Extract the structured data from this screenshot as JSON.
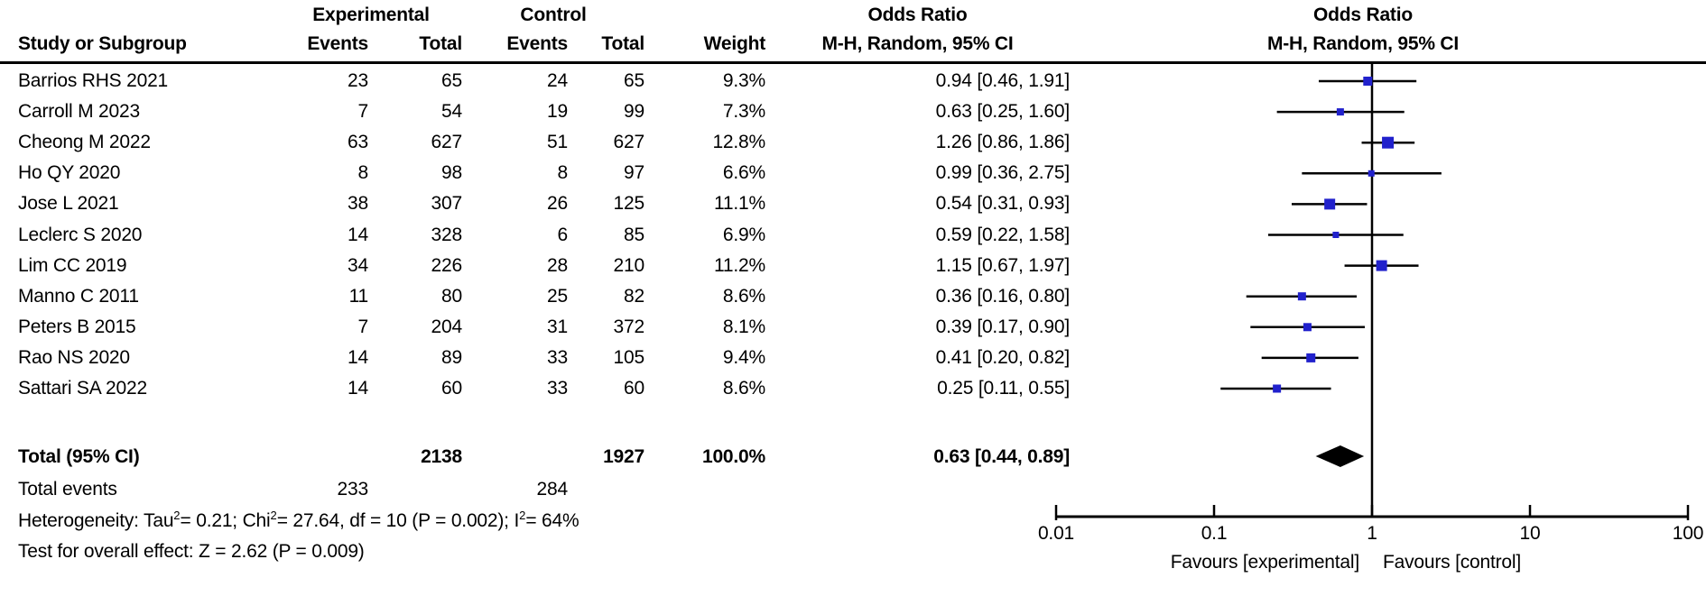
{
  "columns": {
    "experimental": "Experimental",
    "control": "Control",
    "odds_ratio": "Odds Ratio",
    "study_or_subgroup": "Study or Subgroup",
    "events": "Events",
    "total": "Total",
    "weight": "Weight",
    "mh_ci": "M-H, Random, 95% CI"
  },
  "chart_data": {
    "type": "forest",
    "scale": "log10",
    "effect_measure": "Odds Ratio (M-H, Random, 95% CI)",
    "x_axis": {
      "min": 0.01,
      "max": 100,
      "ref_line": 1,
      "ticks": [
        0.01,
        0.1,
        1,
        10,
        100
      ],
      "tick_labels": [
        "0.01",
        "0.1",
        "1",
        "10",
        "100"
      ]
    },
    "marker_color": "#2121cc",
    "favours_left": "Favours [experimental]",
    "favours_right": "Favours [control]",
    "studies": [
      {
        "name": "Barrios RHS 2021",
        "exp_events": "23",
        "exp_total": "65",
        "ctl_events": "24",
        "ctl_total": "65",
        "weight": "9.3%",
        "weight_pct": 9.3,
        "or": 0.94,
        "lo": 0.46,
        "hi": 1.91,
        "or_ci": "0.94 [0.46, 1.91]"
      },
      {
        "name": "Carroll M 2023",
        "exp_events": "7",
        "exp_total": "54",
        "ctl_events": "19",
        "ctl_total": "99",
        "weight": "7.3%",
        "weight_pct": 7.3,
        "or": 0.63,
        "lo": 0.25,
        "hi": 1.6,
        "or_ci": "0.63 [0.25, 1.60]"
      },
      {
        "name": "Cheong M 2022",
        "exp_events": "63",
        "exp_total": "627",
        "ctl_events": "51",
        "ctl_total": "627",
        "weight": "12.8%",
        "weight_pct": 12.8,
        "or": 1.26,
        "lo": 0.86,
        "hi": 1.86,
        "or_ci": "1.26 [0.86, 1.86]"
      },
      {
        "name": "Ho QY 2020",
        "exp_events": "8",
        "exp_total": "98",
        "ctl_events": "8",
        "ctl_total": "97",
        "weight": "6.6%",
        "weight_pct": 6.6,
        "or": 0.99,
        "lo": 0.36,
        "hi": 2.75,
        "or_ci": "0.99 [0.36, 2.75]"
      },
      {
        "name": "Jose L 2021",
        "exp_events": "38",
        "exp_total": "307",
        "ctl_events": "26",
        "ctl_total": "125",
        "weight": "11.1%",
        "weight_pct": 11.1,
        "or": 0.54,
        "lo": 0.31,
        "hi": 0.93,
        "or_ci": "0.54 [0.31, 0.93]"
      },
      {
        "name": "Leclerc S 2020",
        "exp_events": "14",
        "exp_total": "328",
        "ctl_events": "6",
        "ctl_total": "85",
        "weight": "6.9%",
        "weight_pct": 6.9,
        "or": 0.59,
        "lo": 0.22,
        "hi": 1.58,
        "or_ci": "0.59 [0.22, 1.58]"
      },
      {
        "name": "Lim CC 2019",
        "exp_events": "34",
        "exp_total": "226",
        "ctl_events": "28",
        "ctl_total": "210",
        "weight": "11.2%",
        "weight_pct": 11.2,
        "or": 1.15,
        "lo": 0.67,
        "hi": 1.97,
        "or_ci": "1.15 [0.67, 1.97]"
      },
      {
        "name": "Manno C 2011",
        "exp_events": "11",
        "exp_total": "80",
        "ctl_events": "25",
        "ctl_total": "82",
        "weight": "8.6%",
        "weight_pct": 8.6,
        "or": 0.36,
        "lo": 0.16,
        "hi": 0.8,
        "or_ci": "0.36 [0.16, 0.80]"
      },
      {
        "name": "Peters B 2015",
        "exp_events": "7",
        "exp_total": "204",
        "ctl_events": "31",
        "ctl_total": "372",
        "weight": "8.1%",
        "weight_pct": 8.1,
        "or": 0.39,
        "lo": 0.17,
        "hi": 0.9,
        "or_ci": "0.39 [0.17, 0.90]"
      },
      {
        "name": "Rao NS 2020",
        "exp_events": "14",
        "exp_total": "89",
        "ctl_events": "33",
        "ctl_total": "105",
        "weight": "9.4%",
        "weight_pct": 9.4,
        "or": 0.41,
        "lo": 0.2,
        "hi": 0.82,
        "or_ci": "0.41 [0.20, 0.82]"
      },
      {
        "name": "Sattari SA 2022",
        "exp_events": "14",
        "exp_total": "60",
        "ctl_events": "33",
        "ctl_total": "60",
        "weight": "8.6%",
        "weight_pct": 8.6,
        "or": 0.25,
        "lo": 0.11,
        "hi": 0.55,
        "or_ci": "0.25 [0.11, 0.55]"
      }
    ],
    "overall": {
      "or": 0.63,
      "lo": 0.44,
      "hi": 0.89
    }
  },
  "totals": {
    "label": "Total (95% CI)",
    "exp_total": "2138",
    "ctl_total": "1927",
    "weight": "100.0%",
    "or_ci": "0.63 [0.44, 0.89]",
    "events_label": "Total events",
    "exp_events": "233",
    "ctl_events": "284"
  },
  "footer": {
    "het_p1": "Heterogeneity: Tau",
    "sup2": "2",
    "het_p2": " = 0.21; Chi",
    "het_p3": " = 27.64, df = 10 (P = 0.002); I",
    "het_p4": " = 64%",
    "overall_effect": "Test for overall effect: Z = 2.62 (P = 0.009)"
  }
}
